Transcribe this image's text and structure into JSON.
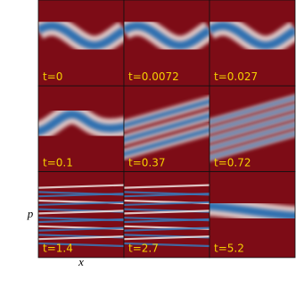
{
  "chart_data": {
    "type": "panel-grid",
    "xlabel": "x",
    "ylabel": "p",
    "panels": [
      "t=0",
      "t=0.0072",
      "t=0.027",
      "t=0.1",
      "t=0.37",
      "t=0.72",
      "t=1.4",
      "t=2.7",
      "t=5.2"
    ]
  }
}
